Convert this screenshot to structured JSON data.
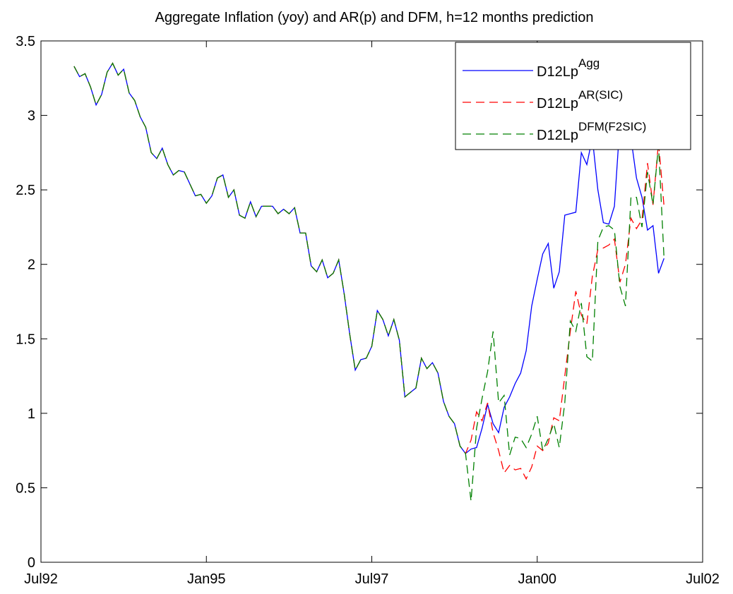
{
  "chart_data": {
    "type": "line",
    "title": "Aggregate Inflation (yoy) and AR(p) and DFM, h=12 months prediction",
    "x": [
      "1993-01",
      "1993-02",
      "1993-03",
      "1993-04",
      "1993-05",
      "1993-06",
      "1993-07",
      "1993-08",
      "1993-09",
      "1993-10",
      "1993-11",
      "1993-12",
      "1994-01",
      "1994-02",
      "1994-03",
      "1994-04",
      "1994-05",
      "1994-06",
      "1994-07",
      "1994-08",
      "1994-09",
      "1994-10",
      "1994-11",
      "1994-12",
      "1995-01",
      "1995-02",
      "1995-03",
      "1995-04",
      "1995-05",
      "1995-06",
      "1995-07",
      "1995-08",
      "1995-09",
      "1995-10",
      "1995-11",
      "1995-12",
      "1996-01",
      "1996-02",
      "1996-03",
      "1996-04",
      "1996-05",
      "1996-06",
      "1996-07",
      "1996-08",
      "1996-09",
      "1996-10",
      "1996-11",
      "1996-12",
      "1997-01",
      "1997-02",
      "1997-03",
      "1997-04",
      "1997-05",
      "1997-06",
      "1997-07",
      "1997-08",
      "1997-09",
      "1997-10",
      "1997-11",
      "1997-12",
      "1998-01",
      "1998-02",
      "1998-03",
      "1998-04",
      "1998-05",
      "1998-06",
      "1998-07",
      "1998-08",
      "1998-09",
      "1998-10",
      "1998-11",
      "1998-12",
      "1999-01",
      "1999-02",
      "1999-03",
      "1999-04",
      "1999-05",
      "1999-06",
      "1999-07",
      "1999-08",
      "1999-09",
      "1999-10",
      "1999-11",
      "1999-12",
      "2000-01",
      "2000-02",
      "2000-03",
      "2000-04",
      "2000-05",
      "2000-06",
      "2000-07",
      "2000-08",
      "2000-09",
      "2000-10",
      "2000-11",
      "2000-12",
      "2001-01",
      "2001-02",
      "2001-03",
      "2001-04",
      "2001-05",
      "2001-06",
      "2001-07",
      "2001-08",
      "2001-09",
      "2001-10",
      "2001-11",
      "2001-12"
    ],
    "series": [
      {
        "name": "D12Lp",
        "superscript": "Agg",
        "color": "#0000ff",
        "linestyle": "solid",
        "values": [
          3.33,
          3.26,
          3.28,
          3.19,
          3.07,
          3.14,
          3.29,
          3.35,
          3.27,
          3.31,
          3.15,
          3.1,
          2.99,
          2.92,
          2.75,
          2.71,
          2.78,
          2.67,
          2.6,
          2.63,
          2.62,
          2.54,
          2.46,
          2.47,
          2.41,
          2.46,
          2.58,
          2.6,
          2.45,
          2.5,
          2.33,
          2.31,
          2.42,
          2.32,
          2.39,
          2.39,
          2.39,
          2.34,
          2.37,
          2.34,
          2.38,
          2.21,
          2.21,
          1.99,
          1.95,
          2.03,
          1.91,
          1.94,
          2.03,
          1.8,
          1.53,
          1.29,
          1.36,
          1.37,
          1.45,
          1.69,
          1.63,
          1.52,
          1.63,
          1.49,
          1.11,
          1.14,
          1.17,
          1.37,
          1.3,
          1.34,
          1.27,
          1.08,
          0.98,
          0.93,
          0.78,
          0.73,
          0.76,
          0.77,
          0.9,
          1.06,
          0.93,
          0.87,
          1.04,
          1.11,
          1.2,
          1.27,
          1.42,
          1.72,
          1.9,
          2.07,
          2.14,
          1.84,
          1.95,
          2.33,
          2.34,
          2.35,
          2.75,
          2.67,
          2.85,
          2.5,
          2.28,
          2.27,
          2.39,
          2.95,
          3.0,
          2.85,
          2.58,
          2.45,
          2.23,
          2.26,
          1.94,
          2.04
        ]
      },
      {
        "name": "D12Lp",
        "superscript": "AR(SIC)",
        "color": "#ff0000",
        "linestyle": "dashed",
        "values": [
          3.33,
          3.26,
          3.28,
          3.19,
          3.07,
          3.14,
          3.29,
          3.35,
          3.27,
          3.31,
          3.15,
          3.1,
          2.99,
          2.92,
          2.75,
          2.71,
          2.78,
          2.67,
          2.6,
          2.63,
          2.62,
          2.54,
          2.46,
          2.47,
          2.41,
          2.46,
          2.58,
          2.6,
          2.45,
          2.5,
          2.33,
          2.31,
          2.42,
          2.32,
          2.39,
          2.39,
          2.39,
          2.34,
          2.37,
          2.34,
          2.38,
          2.21,
          2.21,
          1.99,
          1.95,
          2.03,
          1.91,
          1.94,
          2.03,
          1.8,
          1.53,
          1.29,
          1.36,
          1.37,
          1.45,
          1.69,
          1.63,
          1.52,
          1.63,
          1.49,
          1.11,
          1.14,
          1.17,
          1.37,
          1.3,
          1.34,
          1.27,
          1.08,
          0.98,
          0.93,
          0.78,
          0.73,
          0.82,
          1.01,
          0.95,
          1.07,
          0.87,
          0.75,
          0.6,
          0.65,
          0.62,
          0.63,
          0.56,
          0.64,
          0.78,
          0.75,
          0.8,
          0.97,
          0.95,
          1.25,
          1.55,
          1.82,
          1.66,
          1.6,
          1.92,
          2.1,
          2.11,
          2.13,
          2.17,
          1.88,
          2.0,
          2.31,
          2.24,
          2.3,
          2.68,
          2.4,
          2.82,
          2.39
        ]
      },
      {
        "name": "D12Lp",
        "superscript": "DFM(F2SIC)",
        "color": "#008000",
        "linestyle": "dashed",
        "values": [
          3.33,
          3.26,
          3.28,
          3.19,
          3.07,
          3.14,
          3.29,
          3.35,
          3.27,
          3.31,
          3.15,
          3.1,
          2.99,
          2.92,
          2.75,
          2.71,
          2.78,
          2.67,
          2.6,
          2.63,
          2.62,
          2.54,
          2.46,
          2.47,
          2.41,
          2.46,
          2.58,
          2.6,
          2.45,
          2.5,
          2.33,
          2.31,
          2.42,
          2.32,
          2.39,
          2.39,
          2.39,
          2.34,
          2.37,
          2.34,
          2.38,
          2.21,
          2.21,
          1.99,
          1.95,
          2.03,
          1.91,
          1.94,
          2.03,
          1.8,
          1.53,
          1.29,
          1.36,
          1.37,
          1.45,
          1.69,
          1.63,
          1.52,
          1.63,
          1.49,
          1.11,
          1.14,
          1.17,
          1.37,
          1.3,
          1.34,
          1.27,
          1.08,
          0.98,
          0.93,
          0.78,
          0.73,
          0.41,
          0.9,
          1.1,
          1.28,
          1.55,
          1.07,
          1.12,
          0.72,
          0.84,
          0.83,
          0.77,
          0.86,
          0.98,
          0.75,
          0.83,
          0.93,
          0.77,
          1.07,
          1.62,
          1.55,
          1.74,
          1.38,
          1.35,
          2.16,
          2.25,
          2.26,
          2.23,
          1.85,
          1.72,
          2.45,
          2.45,
          2.25,
          2.62,
          2.4,
          2.8,
          2.04
        ]
      }
    ],
    "xlim": [
      "1992-07",
      "2002-07"
    ],
    "xticks": [
      {
        "value": "1992-07",
        "label": "Jul92"
      },
      {
        "value": "1995-01",
        "label": "Jan95"
      },
      {
        "value": "1997-07",
        "label": "Jul97"
      },
      {
        "value": "2000-01",
        "label": "Jan00"
      },
      {
        "value": "2002-07",
        "label": "Jul02"
      }
    ],
    "ylim": [
      0,
      3.5
    ],
    "yticks": [
      0,
      0.5,
      1,
      1.5,
      2,
      2.5,
      3,
      3.5
    ],
    "grid": false,
    "legend": "top-right"
  }
}
